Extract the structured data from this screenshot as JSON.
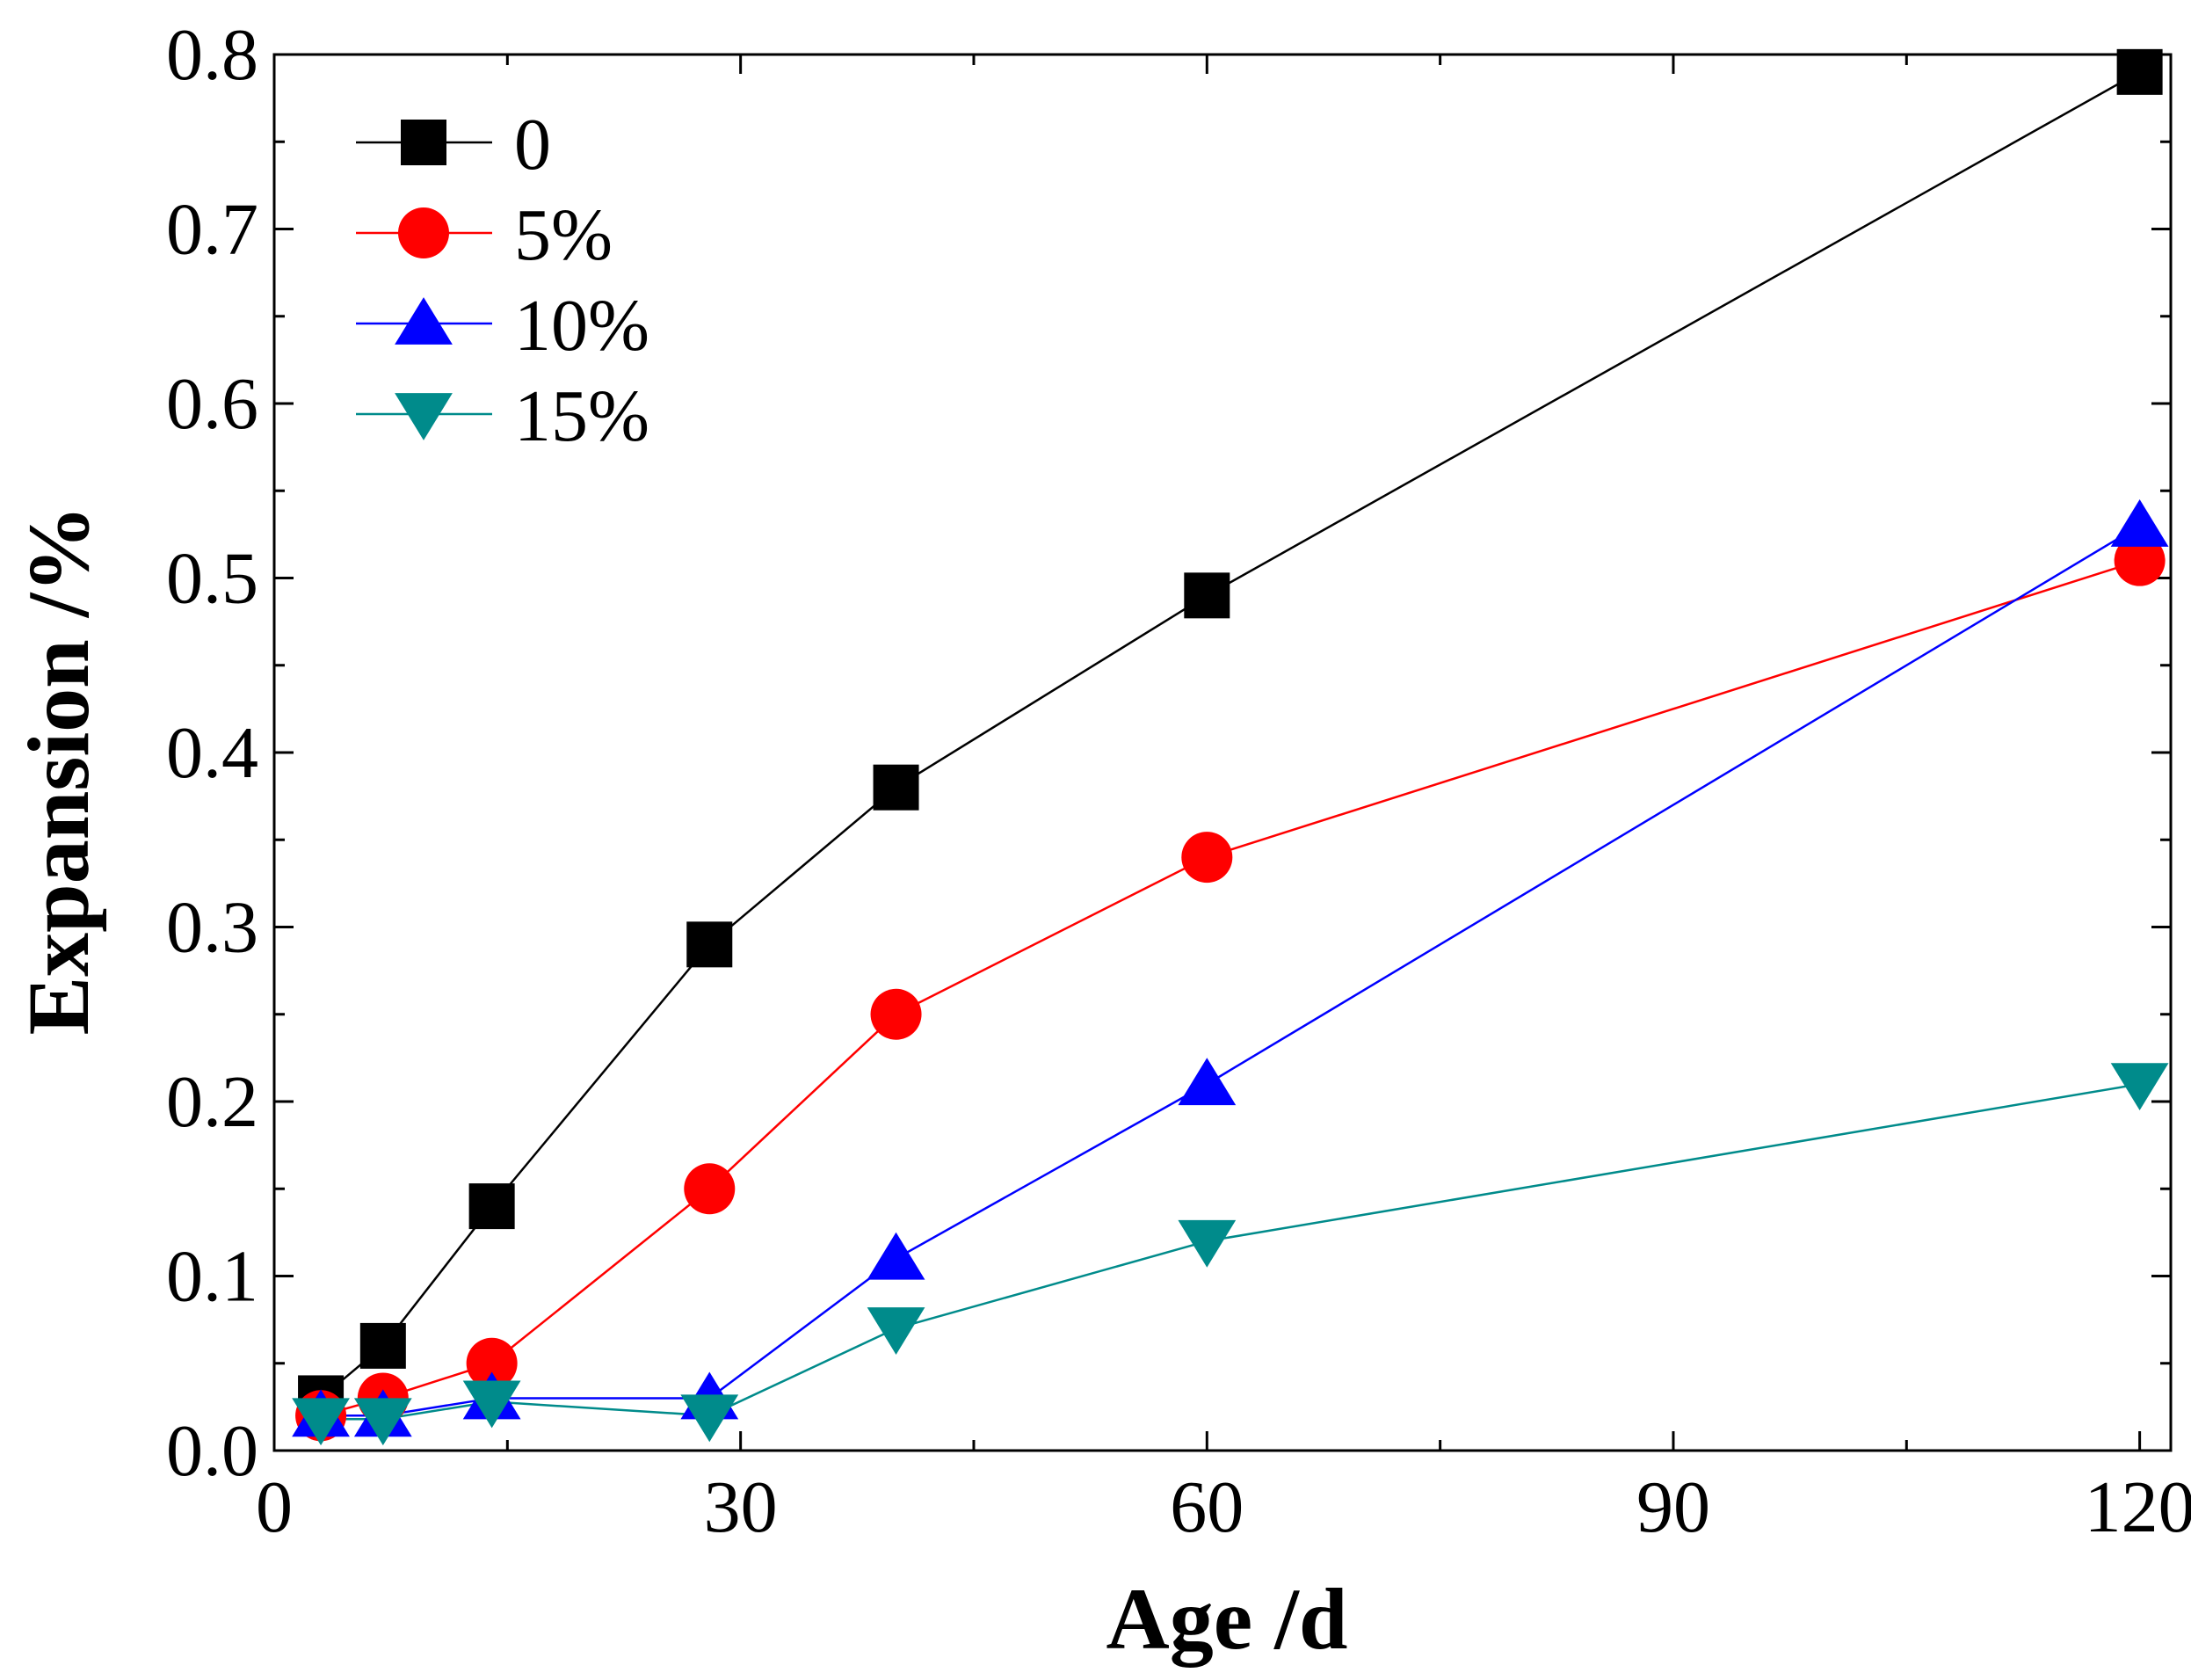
{
  "chart_data": {
    "type": "line",
    "title": "",
    "xlabel": "Age /d",
    "ylabel": "Expansion /%",
    "xlim": [
      0,
      122
    ],
    "ylim": [
      0,
      0.8
    ],
    "xticks": [
      0,
      30,
      60,
      90,
      120
    ],
    "xtick_labels": [
      "0",
      "30",
      "60",
      "90",
      "120"
    ],
    "yticks": [
      0.0,
      0.1,
      0.2,
      0.3,
      0.4,
      0.5,
      0.6,
      0.7,
      0.8
    ],
    "ytick_labels": [
      "0.0",
      "0.1",
      "0.2",
      "0.3",
      "0.4",
      "0.5",
      "0.6",
      "0.7",
      "0.8"
    ],
    "grid": false,
    "legend_position": "top-left",
    "series": [
      {
        "name": "0",
        "marker": "square",
        "color": "#000000",
        "x": [
          3,
          7,
          14,
          28,
          40,
          60,
          120
        ],
        "y": [
          0.03,
          0.06,
          0.14,
          0.29,
          0.38,
          0.49,
          0.79
        ]
      },
      {
        "name": "5%",
        "marker": "circle",
        "color": "#ff0000",
        "x": [
          3,
          7,
          14,
          28,
          40,
          60,
          120
        ],
        "y": [
          0.02,
          0.03,
          0.05,
          0.15,
          0.25,
          0.34,
          0.51
        ]
      },
      {
        "name": "10%",
        "marker": "triangle-up",
        "color": "#0000ff",
        "x": [
          3,
          7,
          14,
          28,
          40,
          60,
          120
        ],
        "y": [
          0.02,
          0.02,
          0.03,
          0.03,
          0.11,
          0.21,
          0.53
        ]
      },
      {
        "name": "15%",
        "marker": "triangle-down",
        "color": "#008b8b",
        "x": [
          3,
          7,
          14,
          28,
          40,
          60,
          120
        ],
        "y": [
          0.018,
          0.018,
          0.028,
          0.02,
          0.07,
          0.12,
          0.21
        ]
      }
    ]
  }
}
